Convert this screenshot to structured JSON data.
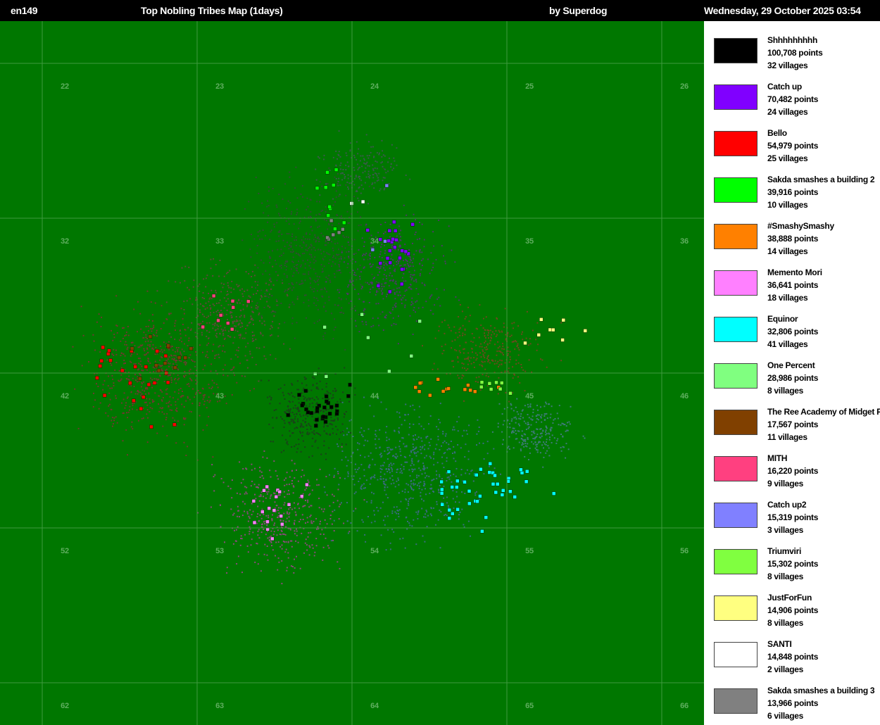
{
  "header": {
    "world": "en149",
    "title": "Top Nobling Tribes Map (1days)",
    "credit": "by Superdog",
    "timestamp": "Wednesday, 29 October 2025 03:54"
  },
  "map": {
    "background_color": "#007700",
    "grid_color": "#3f9a3f",
    "label_color": "#5fae5f",
    "kcells": [
      [
        "22",
        "23",
        "24",
        "25",
        "26"
      ],
      [
        "32",
        "33",
        "34",
        "35",
        "36"
      ],
      [
        "42",
        "43",
        "44",
        "45",
        "46"
      ],
      [
        "52",
        "53",
        "54",
        "55",
        "56"
      ],
      [
        "62",
        "63",
        "64",
        "65",
        "66"
      ]
    ]
  },
  "legend": {
    "items": [
      {
        "name": "Shhhhhhhhh",
        "points": "100,708 points",
        "villages": "32 villages",
        "color": "#000000"
      },
      {
        "name": "Catch up",
        "points": "70,482 points",
        "villages": "24 villages",
        "color": "#8000ff"
      },
      {
        "name": "Bello",
        "points": "54,979 points",
        "villages": "25 villages",
        "color": "#ff0000"
      },
      {
        "name": "Sakda smashes a building 2",
        "points": "39,916 points",
        "villages": "10 villages",
        "color": "#00ff00"
      },
      {
        "name": "#SmashySmashy",
        "points": "38,888 points",
        "villages": "14 villages",
        "color": "#ff8000"
      },
      {
        "name": "Memento Mori",
        "points": "36,641 points",
        "villages": "18 villages",
        "color": "#ff80ff"
      },
      {
        "name": "Equinor",
        "points": "32,806 points",
        "villages": "41 villages",
        "color": "#00ffff"
      },
      {
        "name": "One Percent",
        "points": "28,986 points",
        "villages": "8 villages",
        "color": "#80ff80"
      },
      {
        "name": "The Ree Academy of Midget F",
        "points": "17,567 points",
        "villages": "11 villages",
        "color": "#804000"
      },
      {
        "name": "MITH",
        "points": "16,220 points",
        "villages": "9 villages",
        "color": "#ff4080"
      },
      {
        "name": "Catch up2",
        "points": "15,319 points",
        "villages": "3 villages",
        "color": "#8080ff"
      },
      {
        "name": "Triumviri",
        "points": "15,302 points",
        "villages": "8 villages",
        "color": "#80ff40"
      },
      {
        "name": "JustForFun",
        "points": "14,906 points",
        "villages": "8 villages",
        "color": "#ffff80"
      },
      {
        "name": "SANTI",
        "points": "14,848 points",
        "villages": "2 villages",
        "color": "#ffffff"
      },
      {
        "name": "Sakda smashes a building 3",
        "points": "13,966 points",
        "villages": "6 villages",
        "color": "#808080"
      }
    ]
  }
}
